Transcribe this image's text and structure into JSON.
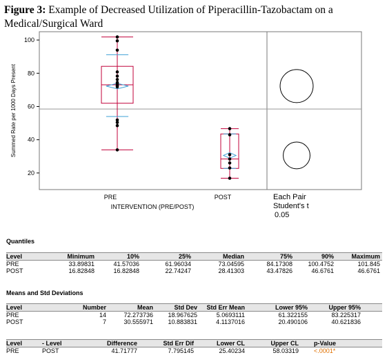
{
  "figure": {
    "label": "Figure 3:",
    "title": " Example of Decreased Utilization of Piperacillin-Tazobactam on a Medical/Surgical Ward"
  },
  "chart_data": {
    "type": "box",
    "ylabel": "Summed Rate per 1000 Days Present",
    "xlabel": "INTERVENTION (PRE/POST)",
    "categories": [
      "PRE",
      "POST"
    ],
    "ylim": [
      10,
      105
    ],
    "yticks": [
      20,
      40,
      60,
      80,
      100
    ],
    "grand_mean": 58.5,
    "groups": [
      {
        "name": "PRE",
        "min": 33.89831,
        "q1": 61.96034,
        "median": 73.04595,
        "q3": 84.17308,
        "max": 101.845,
        "mean": 72.273736,
        "points": [
          101.845,
          99.5,
          93.9,
          80.8,
          78.3,
          76.2,
          74.4,
          73.5,
          72.6,
          71.8,
          51.9,
          50.4,
          48.5,
          33.89831
        ]
      },
      {
        "name": "POST",
        "min": 16.82848,
        "q1": 22.74247,
        "median": 28.41303,
        "q3": 43.47826,
        "max": 46.6761,
        "mean": 30.555971,
        "points": [
          46.6761,
          43.0,
          31.0,
          28.4,
          26.0,
          23.0,
          16.82848
        ]
      }
    ],
    "comparison_label_1": "Each Pair",
    "comparison_label_2": "Student's t",
    "alpha": "0.05"
  },
  "quantiles": {
    "title": "Quantiles",
    "headers": [
      "Level",
      "Minimum",
      "10%",
      "25%",
      "Median",
      "75%",
      "90%",
      "Maximum"
    ],
    "rows": [
      [
        "PRE",
        "33.89831",
        "41.57036",
        "61.96034",
        "73.04595",
        "84.17308",
        "100.4752",
        "101.845"
      ],
      [
        "POST",
        "16.82848",
        "16.82848",
        "22.74247",
        "28.41303",
        "43.47826",
        "46.6761",
        "46.6761"
      ]
    ]
  },
  "means": {
    "title": "Means and Std Deviations",
    "headers": [
      "Level",
      "Number",
      "Mean",
      "Std Dev",
      "Std Err Mean",
      "Lower 95%",
      "Upper 95%"
    ],
    "rows": [
      [
        "PRE",
        "14",
        "72.273736",
        "18.967625",
        "5.0693111",
        "61.322155",
        "83.225317"
      ],
      [
        "POST",
        "7",
        "30.555971",
        "10.883831",
        "4.1137016",
        "20.490106",
        "40.621836"
      ]
    ]
  },
  "diff": {
    "headers": [
      "Level",
      "- Level",
      "Difference",
      "Std Err Dif",
      "Lower CL",
      "Upper CL",
      "p-Value"
    ],
    "rows": [
      [
        "PRE",
        "POST",
        "41.71777",
        "7.795145",
        "25.40234",
        "58.03319",
        "<.0001*"
      ]
    ]
  }
}
